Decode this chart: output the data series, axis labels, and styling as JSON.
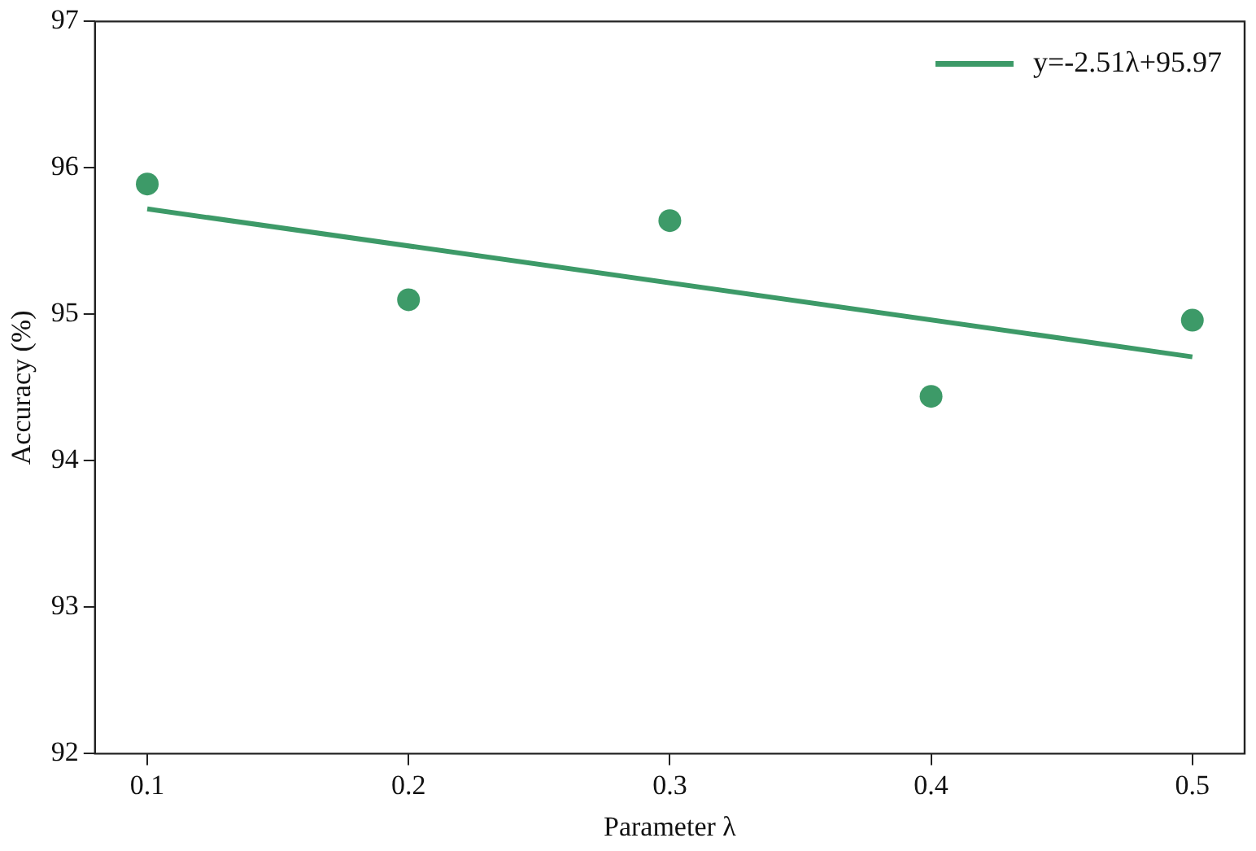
{
  "chart_data": {
    "type": "scatter",
    "xlabel": "Parameter λ",
    "ylabel": "Accuracy (%)",
    "xlim": [
      0.08,
      0.52
    ],
    "xticks": [
      0.1,
      0.2,
      0.3,
      0.4,
      0.5
    ],
    "ylim": [
      92,
      97
    ],
    "yticks": [
      92,
      93,
      94,
      95,
      96,
      97
    ],
    "grid": false,
    "legend": "top right",
    "series": [
      {
        "color": "#3d9a68",
        "marker": "circle",
        "x": [
          0.1,
          0.2,
          0.3,
          0.4,
          0.5
        ],
        "values": [
          95.89,
          95.1,
          95.64,
          94.44,
          94.96
        ]
      },
      {
        "type": "line",
        "name": "y=-2.51λ+95.97",
        "color": "#3d9a68",
        "marker": "none",
        "line_style": "solid",
        "x": [
          0.1,
          0.5
        ],
        "values": [
          95.72,
          94.71
        ]
      }
    ]
  }
}
